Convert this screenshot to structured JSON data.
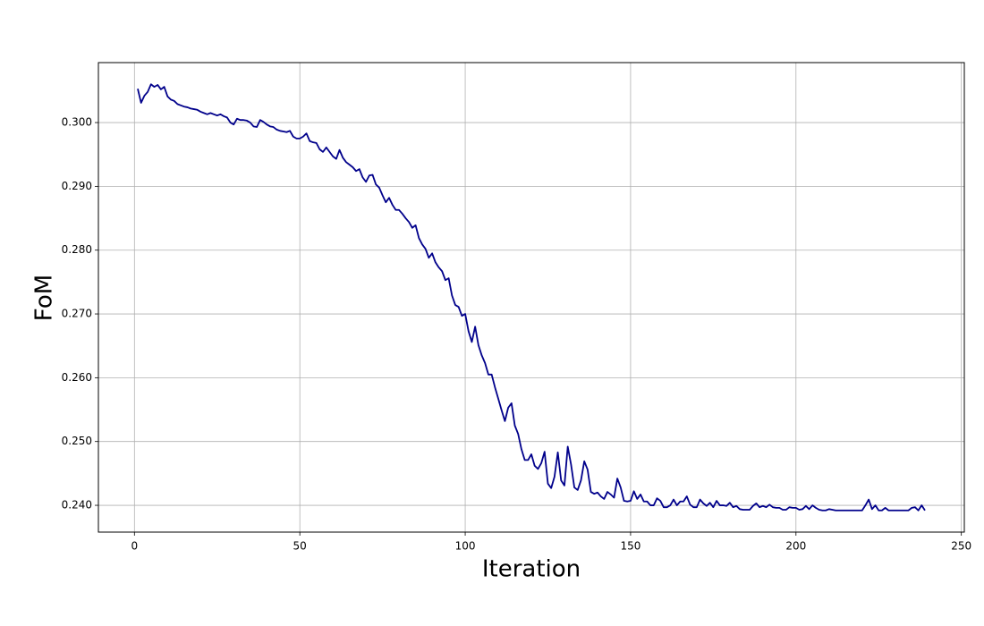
{
  "chart_data": {
    "type": "line",
    "xlabel": "Iteration",
    "ylabel": "FoM",
    "color": "#00008b",
    "grid": true,
    "x": [
      1,
      2,
      3,
      4,
      5,
      6,
      7,
      8,
      9,
      10,
      11,
      12,
      13,
      14,
      15,
      16,
      17,
      18,
      19,
      20,
      21,
      22,
      23,
      24,
      25,
      26,
      27,
      28,
      29,
      30,
      31,
      32,
      33,
      34,
      35,
      36,
      37,
      38,
      39,
      40,
      41,
      42,
      43,
      44,
      45,
      46,
      47,
      48,
      49,
      50,
      51,
      52,
      53,
      54,
      55,
      56,
      57,
      58,
      59,
      60,
      61,
      62,
      63,
      64,
      65,
      66,
      67,
      68,
      69,
      70,
      71,
      72,
      73,
      74,
      75,
      76,
      77,
      78,
      79,
      80,
      81,
      82,
      83,
      84,
      85,
      86,
      87,
      88,
      89,
      90,
      91,
      92,
      93,
      94,
      95,
      96,
      97,
      98,
      99,
      100,
      101,
      102,
      103,
      104,
      105,
      106,
      107,
      108,
      109,
      110,
      111,
      112,
      113,
      114,
      115,
      116,
      117,
      118,
      119,
      120,
      121,
      122,
      123,
      124,
      125,
      126,
      127,
      128,
      129,
      130,
      131,
      132,
      133,
      134,
      135,
      136,
      137,
      138,
      139,
      140,
      141,
      142,
      143,
      144,
      145,
      146,
      147,
      148,
      149,
      150,
      151,
      152,
      153,
      154,
      155,
      156,
      157,
      158,
      159,
      160,
      161,
      162,
      163,
      164,
      165,
      166,
      167,
      168,
      169,
      170,
      171,
      172,
      173,
      174,
      175,
      176,
      177,
      178,
      179,
      180,
      181,
      182,
      183,
      184,
      185,
      186,
      187,
      188,
      189,
      190,
      191,
      192,
      193,
      194,
      195,
      196,
      197,
      198,
      199,
      200,
      201,
      202,
      203,
      204,
      205,
      206,
      207,
      208,
      209,
      210,
      211,
      212,
      213,
      214,
      215,
      216,
      217,
      218,
      219,
      220,
      221,
      222,
      223,
      224,
      225,
      226,
      227,
      228,
      229,
      230,
      231,
      232,
      233,
      234,
      235,
      236,
      237,
      238,
      239
    ],
    "values": [
      0.3053,
      0.3031,
      0.3042,
      0.3048,
      0.306,
      0.3056,
      0.3059,
      0.3052,
      0.3056,
      0.3041,
      0.3036,
      0.3034,
      0.3029,
      0.3027,
      0.3025,
      0.3024,
      0.3022,
      0.3021,
      0.302,
      0.3017,
      0.3015,
      0.3013,
      0.3015,
      0.3013,
      0.3011,
      0.3013,
      0.301,
      0.3008,
      0.3,
      0.2997,
      0.3006,
      0.3004,
      0.3004,
      0.3003,
      0.3,
      0.2994,
      0.2993,
      0.3004,
      0.3001,
      0.2997,
      0.2994,
      0.2993,
      0.2989,
      0.2987,
      0.2986,
      0.2985,
      0.2987,
      0.2978,
      0.2975,
      0.2975,
      0.2978,
      0.2983,
      0.2971,
      0.2969,
      0.2968,
      0.2958,
      0.2954,
      0.2961,
      0.2954,
      0.2947,
      0.2943,
      0.2957,
      0.2945,
      0.2938,
      0.2934,
      0.293,
      0.2924,
      0.2927,
      0.2914,
      0.2907,
      0.2917,
      0.2918,
      0.2903,
      0.2898,
      0.2886,
      0.2875,
      0.2882,
      0.2871,
      0.2863,
      0.2863,
      0.2857,
      0.285,
      0.2844,
      0.2835,
      0.2839,
      0.2819,
      0.2809,
      0.2802,
      0.2788,
      0.2795,
      0.2781,
      0.2773,
      0.2767,
      0.2753,
      0.2756,
      0.2729,
      0.2714,
      0.2711,
      0.2697,
      0.27,
      0.2673,
      0.2656,
      0.268,
      0.2651,
      0.2635,
      0.2623,
      0.2605,
      0.2605,
      0.2585,
      0.2567,
      0.2549,
      0.2532,
      0.2553,
      0.256,
      0.2525,
      0.2512,
      0.2488,
      0.2471,
      0.2471,
      0.248,
      0.2462,
      0.2457,
      0.2466,
      0.2484,
      0.2434,
      0.2427,
      0.2445,
      0.2483,
      0.2439,
      0.2431,
      0.2492,
      0.2464,
      0.2428,
      0.2424,
      0.2439,
      0.2469,
      0.2456,
      0.2421,
      0.2418,
      0.242,
      0.2414,
      0.241,
      0.2421,
      0.2417,
      0.2412,
      0.2442,
      0.2428,
      0.2407,
      0.2406,
      0.2407,
      0.2422,
      0.241,
      0.2417,
      0.2406,
      0.2406,
      0.24,
      0.24,
      0.2411,
      0.2407,
      0.2397,
      0.2397,
      0.24,
      0.2409,
      0.24,
      0.2406,
      0.2406,
      0.2414,
      0.2401,
      0.2397,
      0.2397,
      0.2409,
      0.2403,
      0.2399,
      0.2404,
      0.2397,
      0.2407,
      0.24,
      0.24,
      0.2399,
      0.2404,
      0.2397,
      0.2399,
      0.2394,
      0.2393,
      0.2393,
      0.2393,
      0.2399,
      0.2403,
      0.2397,
      0.2399,
      0.2397,
      0.2401,
      0.2397,
      0.2396,
      0.2396,
      0.2393,
      0.2393,
      0.2397,
      0.2396,
      0.2396,
      0.2393,
      0.2394,
      0.2399,
      0.2394,
      0.24,
      0.2396,
      0.2393,
      0.2392,
      0.2392,
      0.2394,
      0.2393,
      0.2392,
      0.2392,
      0.2392,
      0.2392,
      0.2392,
      0.2392,
      0.2392,
      0.2392,
      0.2392,
      0.24,
      0.2409,
      0.2394,
      0.24,
      0.2392,
      0.2392,
      0.2396,
      0.2392,
      0.2392,
      0.2392,
      0.2392,
      0.2392,
      0.2392,
      0.2392,
      0.2396,
      0.2397,
      0.2392,
      0.24,
      0.2392
    ],
    "xlim": [
      -10.9,
      250.9
    ],
    "xticks": [
      0,
      50,
      100,
      150,
      200,
      250
    ],
    "ylim": [
      0.2358,
      0.3094
    ],
    "yticks": [
      {
        "value": 0.24,
        "label": "0.240"
      },
      {
        "value": 0.25,
        "label": "0.250"
      },
      {
        "value": 0.26,
        "label": "0.260"
      },
      {
        "value": 0.27,
        "label": "0.270"
      },
      {
        "value": 0.28,
        "label": "0.280"
      },
      {
        "value": 0.29,
        "label": "0.290"
      },
      {
        "value": 0.3,
        "label": "0.300"
      }
    ]
  }
}
